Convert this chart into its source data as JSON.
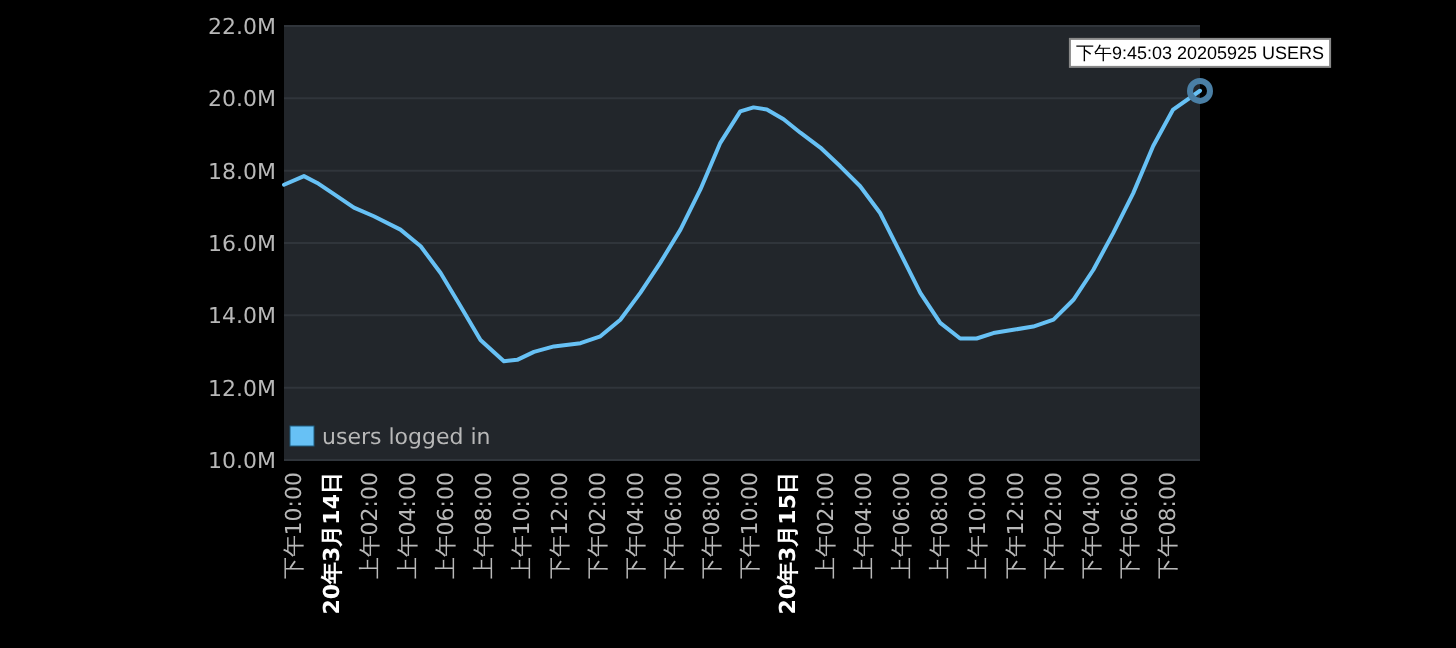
{
  "chart_data": {
    "type": "line",
    "legend": "bottom left",
    "grid": "y",
    "marker": "none",
    "line_style": "solid",
    "x": [
      "2020-03-13T21:30",
      "2020-03-13T22:33",
      "2020-03-13T23:15",
      "2020-03-14T00:08",
      "2020-03-14T01:11",
      "2020-03-14T02:14",
      "2020-03-14T03:38",
      "2020-03-14T04:42",
      "2020-03-14T05:45",
      "2020-03-14T06:48",
      "2020-03-14T07:51",
      "2020-03-14T09:05",
      "2020-03-14T09:47",
      "2020-03-14T10:40",
      "2020-03-14T11:43",
      "2020-03-14T13:07",
      "2020-03-14T14:10",
      "2020-03-14T15:13",
      "2020-03-14T16:16",
      "2020-03-14T17:19",
      "2020-03-14T18:23",
      "2020-03-14T19:26",
      "2020-03-14T20:29",
      "2020-03-14T21:32",
      "2020-03-14T22:14",
      "2020-03-14T22:56",
      "2020-03-14T23:49",
      "2020-03-15T00:42",
      "2020-03-15T01:45",
      "2020-03-15T02:48",
      "2020-03-15T03:51",
      "2020-03-15T04:54",
      "2020-03-15T05:58",
      "2020-03-15T07:01",
      "2020-03-15T08:04",
      "2020-03-15T09:07",
      "2020-03-15T09:59",
      "2020-03-15T10:52",
      "2020-03-15T11:55",
      "2020-03-15T12:58",
      "2020-03-15T14:02",
      "2020-03-15T15:05",
      "2020-03-15T16:08",
      "2020-03-15T17:11",
      "2020-03-15T18:14",
      "2020-03-15T19:17",
      "2020-03-15T20:20",
      "2020-03-15T21:45"
    ],
    "series": [
      {
        "name": "users logged in",
        "color": "#67c1f5",
        "values": [
          17.61,
          17.85,
          17.66,
          17.35,
          16.98,
          16.74,
          16.37,
          15.91,
          15.17,
          14.25,
          13.32,
          12.73,
          12.77,
          12.99,
          13.14,
          13.23,
          13.42,
          13.88,
          14.62,
          15.45,
          16.37,
          17.48,
          18.77,
          19.64,
          19.75,
          19.69,
          19.42,
          19.05,
          18.64,
          18.12,
          17.57,
          16.83,
          15.72,
          14.62,
          13.79,
          13.36,
          13.36,
          13.51,
          13.6,
          13.69,
          13.88,
          14.43,
          15.26,
          16.28,
          17.38,
          18.68,
          19.69,
          20.21
        ]
      }
    ],
    "xlim": [
      "2020-03-13T21:30",
      "2020-03-15T21:45"
    ],
    "xticks": [
      {
        "value": "2020-03-13T22:00",
        "label": "下午10:00"
      },
      {
        "value": "2020-03-14T00:00",
        "label": "20年3月14日"
      },
      {
        "value": "2020-03-14T02:00",
        "label": "上午02:00"
      },
      {
        "value": "2020-03-14T04:00",
        "label": "上午04:00"
      },
      {
        "value": "2020-03-14T06:00",
        "label": "上午06:00"
      },
      {
        "value": "2020-03-14T08:00",
        "label": "上午08:00"
      },
      {
        "value": "2020-03-14T10:00",
        "label": "上午10:00"
      },
      {
        "value": "2020-03-14T12:00",
        "label": "下午12:00"
      },
      {
        "value": "2020-03-14T14:00",
        "label": "下午02:00"
      },
      {
        "value": "2020-03-14T16:00",
        "label": "下午04:00"
      },
      {
        "value": "2020-03-14T18:00",
        "label": "下午06:00"
      },
      {
        "value": "2020-03-14T20:00",
        "label": "下午08:00"
      },
      {
        "value": "2020-03-14T22:00",
        "label": "下午10:00"
      },
      {
        "value": "2020-03-15T00:00",
        "label": "20年3月15日"
      },
      {
        "value": "2020-03-15T02:00",
        "label": "上午02:00"
      },
      {
        "value": "2020-03-15T04:00",
        "label": "上午04:00"
      },
      {
        "value": "2020-03-15T06:00",
        "label": "上午06:00"
      },
      {
        "value": "2020-03-15T08:00",
        "label": "上午08:00"
      },
      {
        "value": "2020-03-15T10:00",
        "label": "上午10:00"
      },
      {
        "value": "2020-03-15T12:00",
        "label": "下午12:00"
      },
      {
        "value": "2020-03-15T14:00",
        "label": "下午02:00"
      },
      {
        "value": "2020-03-15T16:00",
        "label": "下午04:00"
      },
      {
        "value": "2020-03-15T18:00",
        "label": "下午06:00"
      },
      {
        "value": "2020-03-15T20:00",
        "label": "下午08:00"
      }
    ],
    "ylim": [
      10,
      22
    ],
    "yticks": [
      {
        "value": 10,
        "label": "10.0M"
      },
      {
        "value": 12,
        "label": "12.0M"
      },
      {
        "value": 14,
        "label": "14.0M"
      },
      {
        "value": 16,
        "label": "16.0M"
      },
      {
        "value": 18,
        "label": "18.0M"
      },
      {
        "value": 20,
        "label": "20.0M"
      },
      {
        "value": 22,
        "label": "22.0M"
      }
    ],
    "annotations": [
      {
        "text": "下午9:45:03 20205925 USERS",
        "x": "2020-03-15T21:45",
        "y": 20.205925
      }
    ]
  }
}
